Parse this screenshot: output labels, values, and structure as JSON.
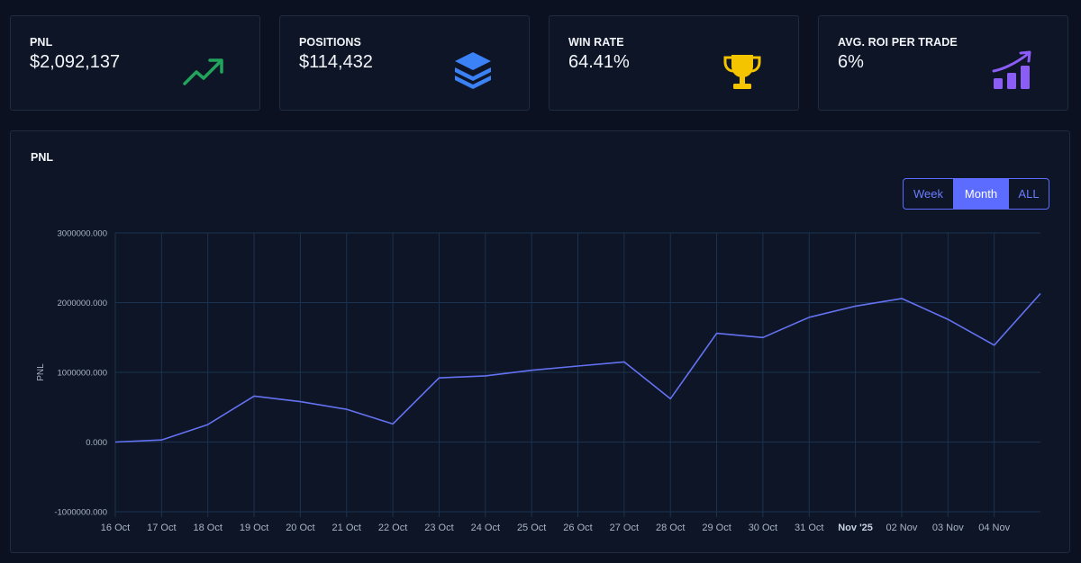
{
  "stats": [
    {
      "label": "PNL",
      "value": "$2,092,137",
      "icon": "trending-up-icon",
      "color": "#22a45d"
    },
    {
      "label": "POSITIONS",
      "value": "$114,432",
      "icon": "layers-icon",
      "color": "#3b82f6"
    },
    {
      "label": "WIN RATE",
      "value": "64.41%",
      "icon": "trophy-icon",
      "color": "#f5c400"
    },
    {
      "label": "AVG. ROI PER TRADE",
      "value": "6%",
      "icon": "bar-chart-growth-icon",
      "color": "#8b5cf6"
    }
  ],
  "panel": {
    "title": "PNL",
    "range_buttons": {
      "week": "Week",
      "month": "Month",
      "all": "ALL"
    },
    "selected_range": "Month"
  },
  "chart_data": {
    "type": "line",
    "ylabel": "PNL",
    "xlabel": "",
    "ylim": [
      -1000000,
      3000000
    ],
    "yticks": [
      -1000000,
      0,
      1000000,
      2000000,
      3000000
    ],
    "ytick_labels": [
      "-1000000.000",
      "0.000",
      "1000000.000",
      "2000000.000",
      "3000000.000"
    ],
    "x_tick_labels": [
      "16 Oct",
      "17 Oct",
      "18 Oct",
      "19 Oct",
      "20 Oct",
      "21 Oct",
      "22 Oct",
      "23 Oct",
      "24 Oct",
      "25 Oct",
      "26 Oct",
      "27 Oct",
      "28 Oct",
      "29 Oct",
      "30 Oct",
      "31 Oct",
      "Nov '25",
      "02 Nov",
      "03 Nov",
      "04 Nov"
    ],
    "bold_tick": "Nov '25",
    "grid": true,
    "line_color": "#6472f2",
    "series": [
      {
        "x": [
          "2025-10-16",
          "2025-10-17",
          "2025-10-18",
          "2025-10-19",
          "2025-10-20",
          "2025-10-21",
          "2025-10-22",
          "2025-10-23",
          "2025-10-24",
          "2025-10-25",
          "2025-10-26",
          "2025-10-27",
          "2025-10-28",
          "2025-10-29",
          "2025-10-30",
          "2025-10-31",
          "2025-11-01",
          "2025-11-02",
          "2025-11-03",
          "2025-11-04",
          "2025-11-05"
        ],
        "values": [
          0,
          30000,
          250000,
          660000,
          580000,
          470000,
          260000,
          920000,
          950000,
          1030000,
          1090000,
          1150000,
          620000,
          1560000,
          1500000,
          1790000,
          1950000,
          2060000,
          1760000,
          1390000,
          2130000
        ]
      }
    ]
  }
}
